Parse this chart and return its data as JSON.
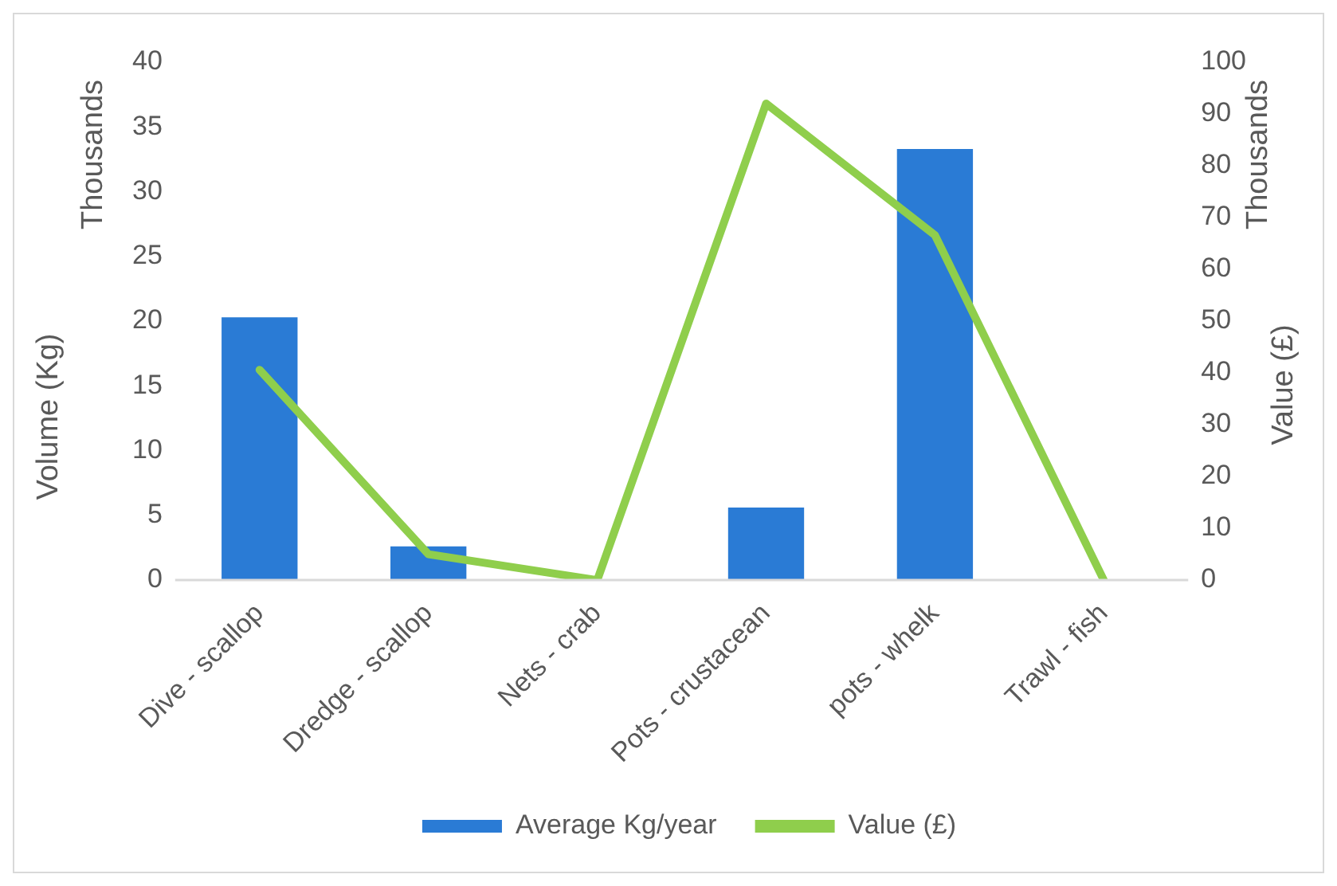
{
  "chart_data": {
    "type": "bar",
    "categories": [
      "Dive - scallop",
      "Dredge - scallop",
      "Nets - crab",
      "Pots - crustacean",
      "pots - whelk",
      "Trawl - fish"
    ],
    "series": [
      {
        "name": "Average Kg/year",
        "color": "#2a7bd5",
        "values": [
          20.3,
          2.6,
          0,
          5.6,
          33.3,
          0
        ]
      },
      {
        "name": "Value (£)",
        "type": "line",
        "axis": "y2",
        "color": "#8fce4c",
        "values": [
          40.6,
          5.0,
          0,
          92,
          66.6,
          0
        ]
      }
    ],
    "ylabel": "Volume (Kg)",
    "y2label": "Value (£)",
    "annotations": [
      "Thousands",
      "Thousands"
    ],
    "ylim": [
      0,
      40
    ],
    "yticks": [
      0,
      5,
      10,
      15,
      20,
      25,
      30,
      35,
      40
    ],
    "y2lim": [
      0,
      100
    ],
    "y2ticks": [
      0,
      10,
      20,
      30,
      40,
      50,
      60,
      70,
      80,
      90,
      100
    ],
    "grid": false,
    "legend": "bottom",
    "marker": "none"
  }
}
